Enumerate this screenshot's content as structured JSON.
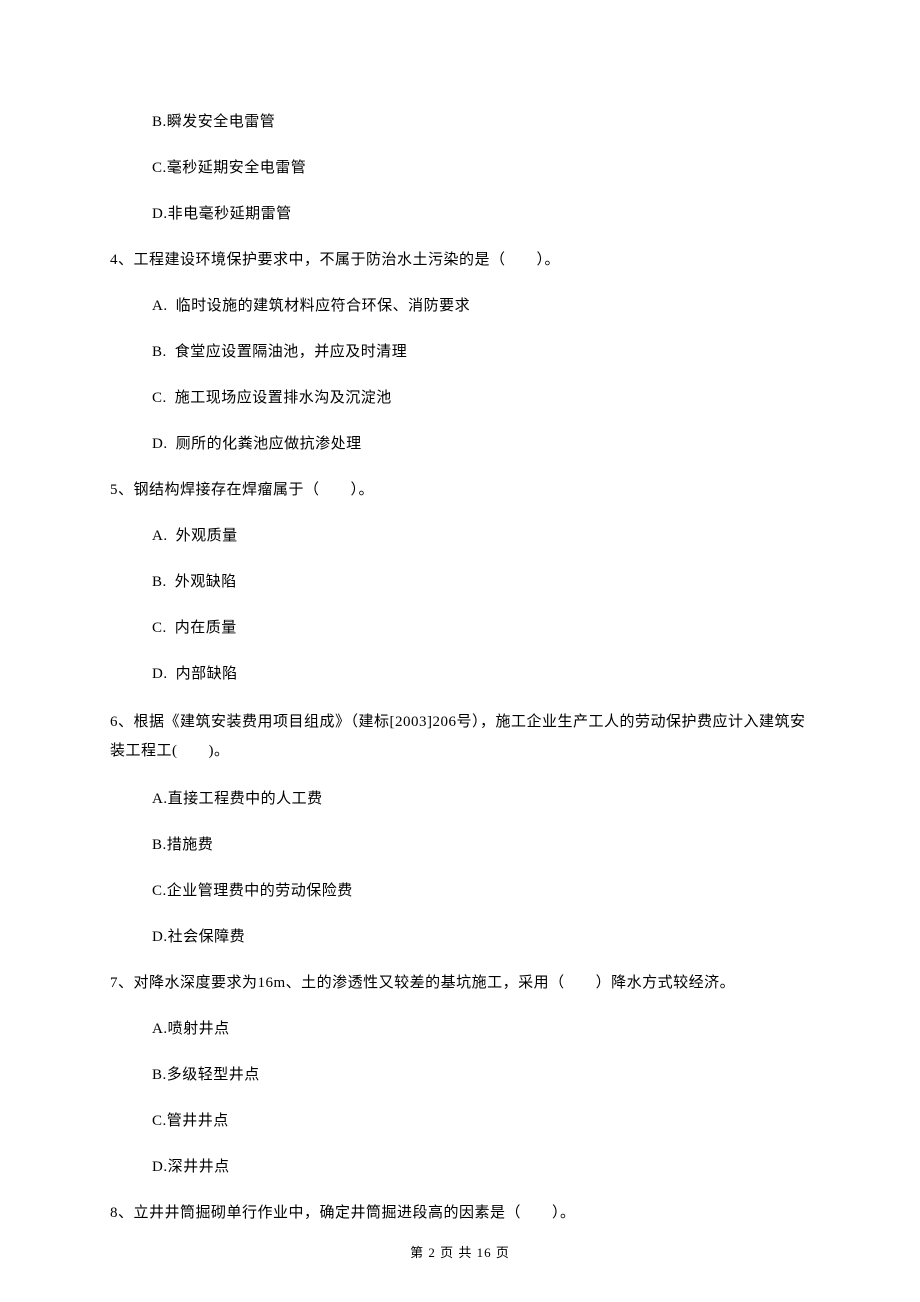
{
  "q3_options": {
    "b": {
      "label": "B.",
      "text": "瞬发安全电雷管"
    },
    "c": {
      "label": "C.",
      "text": "毫秒延期安全电雷管"
    },
    "d": {
      "label": "D.",
      "text": "非电毫秒延期雷管"
    }
  },
  "q4": {
    "stem": "4、工程建设环境保护要求中，不属于防治水土污染的是（　　）。",
    "options": {
      "a": {
        "label": "A.",
        "text": "临时设施的建筑材料应符合环保、消防要求"
      },
      "b": {
        "label": "B.",
        "text": "食堂应设置隔油池，并应及时清理"
      },
      "c": {
        "label": "C.",
        "text": "施工现场应设置排水沟及沉淀池"
      },
      "d": {
        "label": "D.",
        "text": "厕所的化粪池应做抗渗处理"
      }
    }
  },
  "q5": {
    "stem": "5、钢结构焊接存在焊瘤属于（　　）。",
    "options": {
      "a": {
        "label": "A.",
        "text": "外观质量"
      },
      "b": {
        "label": "B.",
        "text": "外观缺陷"
      },
      "c": {
        "label": "C.",
        "text": "内在质量"
      },
      "d": {
        "label": "D.",
        "text": "内部缺陷"
      }
    }
  },
  "q6": {
    "stem": "6、根据《建筑安装费用项目组成》（建标[2003]206号），施工企业生产工人的劳动保护费应计入建筑安装工程工(　　)。",
    "options": {
      "a": {
        "label": "A.",
        "text": "直接工程费中的人工费"
      },
      "b": {
        "label": "B.",
        "text": "措施费"
      },
      "c": {
        "label": "C.",
        "text": "企业管理费中的劳动保险费"
      },
      "d": {
        "label": "D.",
        "text": "社会保障费"
      }
    }
  },
  "q7": {
    "stem": "7、对降水深度要求为16m、土的渗透性又较差的基坑施工，采用（　　）降水方式较经济。",
    "options": {
      "a": {
        "label": "A.",
        "text": "喷射井点"
      },
      "b": {
        "label": "B.",
        "text": "多级轻型井点"
      },
      "c": {
        "label": "C.",
        "text": "管井井点"
      },
      "d": {
        "label": "D.",
        "text": "深井井点"
      }
    }
  },
  "q8": {
    "stem": "8、立井井筒掘砌单行作业中，确定井筒掘进段高的因素是（　　）。"
  },
  "footer": "第 2 页 共 16 页"
}
